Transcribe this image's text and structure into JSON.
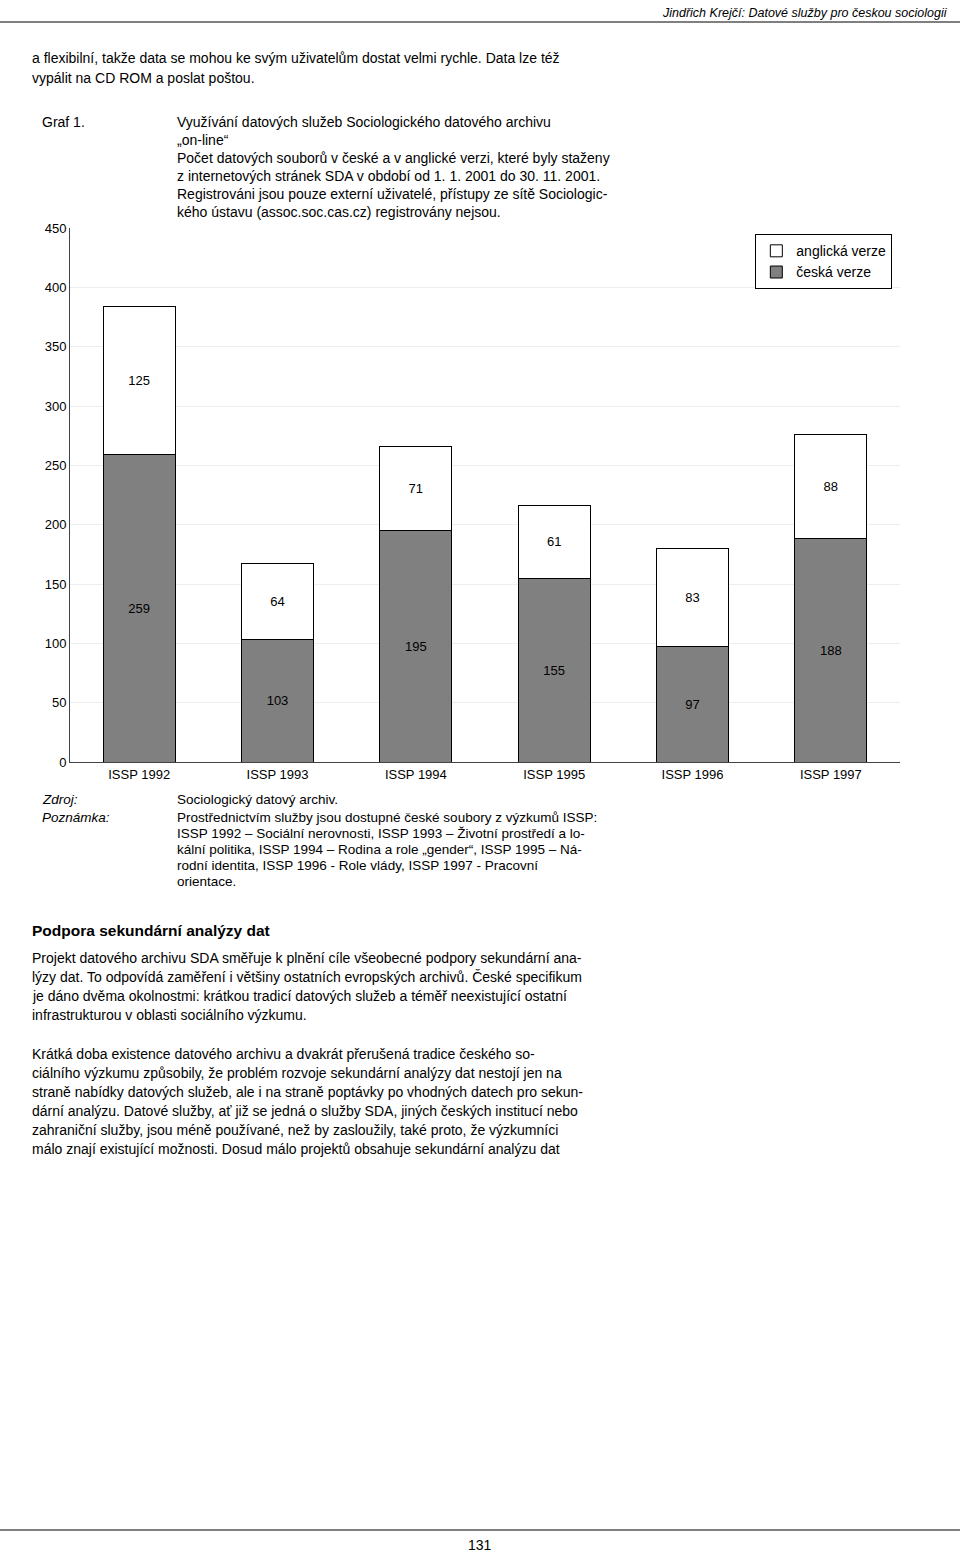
{
  "chart_data": {
    "type": "bar",
    "title": "Využívání datových služeb Sociologického datového archivu\n„on-line“\nPočet datových souborů v české a v anglické verzi, které byly staženy\nz internetových stránek SDA v období od 1. 1. 2001 do 30. 11. 2001.\nRegistrováni jsou pouze externí uživatelé, přístupy ze sítě Sociologic-\nkého ústavu (assoc.soc.cas.cz) registrovány nejsou.",
    "categories": [
      "ISSP 1992",
      "ISSP 1993",
      "ISSP 1994",
      "ISSP 1995",
      "ISSP 1996",
      "ISSP 1997"
    ],
    "series": [
      {
        "name": "česká verze",
        "color": "#808080",
        "values": [
          259,
          103,
          195,
          155,
          97,
          188
        ]
      },
      {
        "name": "anglická verze",
        "color": "#ffffff",
        "values": [
          125,
          64,
          71,
          61,
          83,
          88
        ]
      }
    ],
    "stacked": true,
    "data_labels": true,
    "ylim": [
      0,
      450
    ],
    "yticks": [
      0,
      50,
      100,
      150,
      200,
      250,
      300,
      350,
      400,
      450
    ],
    "grid": true,
    "legend": "upper right",
    "annotations": [
      "Jindřich Krejčí: Datové služby pro českou sociologii",
      "a flexibilní, takže data se mohou ke svým uživatelům dostat velmi rychle. Data lze též",
      "vypálit na CD ROM a poslat poštou.",
      "Graf 1.",
      "Zdroj:",
      "Sociologický datový archiv.",
      "Poznámka:",
      "Prostřednictvím služby jsou dostupné české soubory z výzkumů ISSP:",
      "ISSP 1992 – Sociální nerovnosti, ISSP 1993 – Životní prostředí a lo-",
      "kální politika, ISSP 1994 – Rodina a role „gender“, ISSP 1995 – Ná-",
      "rodní identita, ISSP 1996 - Role vlády, ISSP 1997 - Pracovní",
      "orientace.",
      "Podpora sekundární analýzy dat",
      "Projekt datového archivu SDA směřuje k plnění cíle všeobecné podpory sekundární ana-",
      "lýzy dat. To odpovídá zaměření i většiny ostatních evropských archivů. České specifikum",
      "je dáno dvěma okolnostmi: krátkou tradicí datových služeb a téměř neexistující ostatní",
      "infrastrukturou v oblasti sociálního výzkumu.",
      "Krátká doba existence datového archivu a dvakrát přerušená tradice českého so-",
      "ciálního výzkumu způsobily, že problém rozvoje sekundární analýzy dat nestojí jen na",
      "straně nabídky datových služeb, ale i na straně poptávky po vhodných datech pro sekun-",
      "dární analýzu. Datové služby, ať již se jedná o služby SDA, jiných českých institucí nebo",
      "zahraniční služby, jsou méně používané, než by zasloužily, také proto, že výzkumníci",
      "málo znají existující možnosti. Dosud málo projektů obsahuje sekundární analýzu dat",
      "131"
    ]
  }
}
